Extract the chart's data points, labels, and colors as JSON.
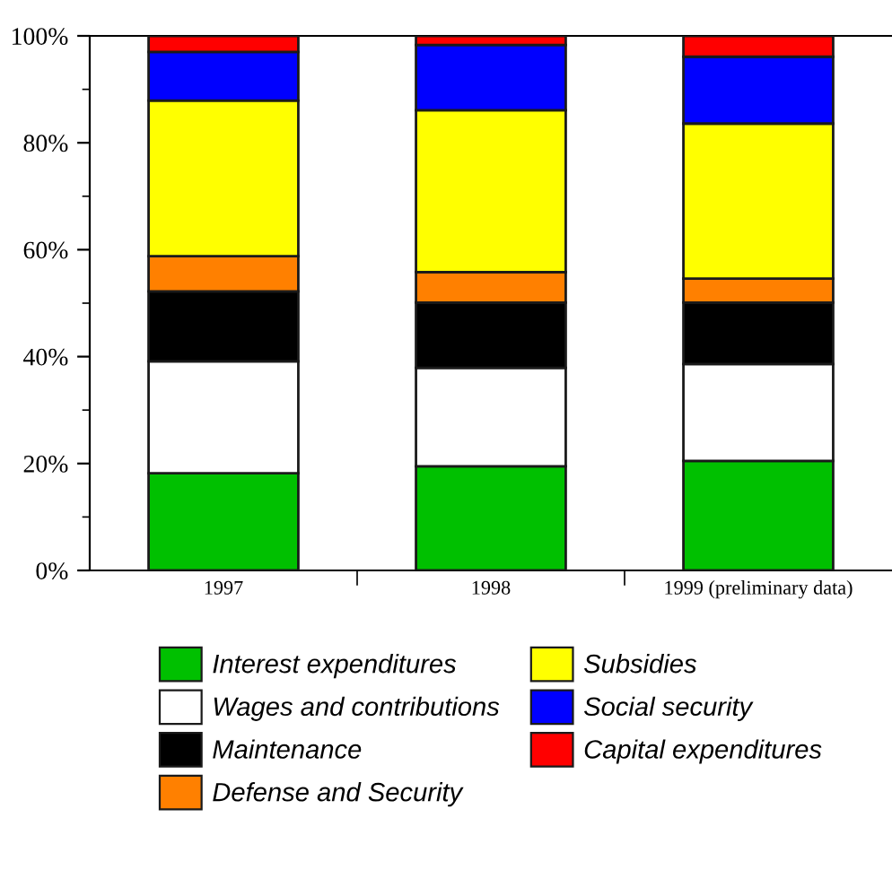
{
  "chart_data": {
    "type": "bar",
    "stacked": true,
    "categories": [
      "1997",
      "1998",
      "1999 (preliminary data)"
    ],
    "series": [
      {
        "name": "Interest expenditures",
        "color": "#00c000",
        "values": [
          18.2,
          19.5,
          20.5
        ]
      },
      {
        "name": "Wages and contributions",
        "color": "#ffffff",
        "values": [
          20.9,
          18.4,
          18.1
        ]
      },
      {
        "name": "Maintenance",
        "color": "#000000",
        "values": [
          13.1,
          12.2,
          11.5
        ]
      },
      {
        "name": "Defense and Security",
        "color": "#ff8000",
        "values": [
          6.6,
          5.7,
          4.5
        ]
      },
      {
        "name": "Subsidies",
        "color": "#ffff00",
        "values": [
          29.1,
          30.3,
          29.0
        ]
      },
      {
        "name": "Social security",
        "color": "#0000ff",
        "values": [
          9.1,
          12.2,
          12.5
        ]
      },
      {
        "name": "Capital expenditures",
        "color": "#ff0000",
        "values": [
          3.0,
          1.7,
          3.9
        ]
      }
    ],
    "ylim": [
      0,
      100
    ],
    "yticks": [
      {
        "value": 0,
        "label": "0%"
      },
      {
        "value": 20,
        "label": "20%"
      },
      {
        "value": 40,
        "label": "40%"
      },
      {
        "value": 60,
        "label": "60%"
      },
      {
        "value": 80,
        "label": "80%"
      },
      {
        "value": 100,
        "label": "100%"
      }
    ],
    "grid": false,
    "legend": "bottom"
  }
}
